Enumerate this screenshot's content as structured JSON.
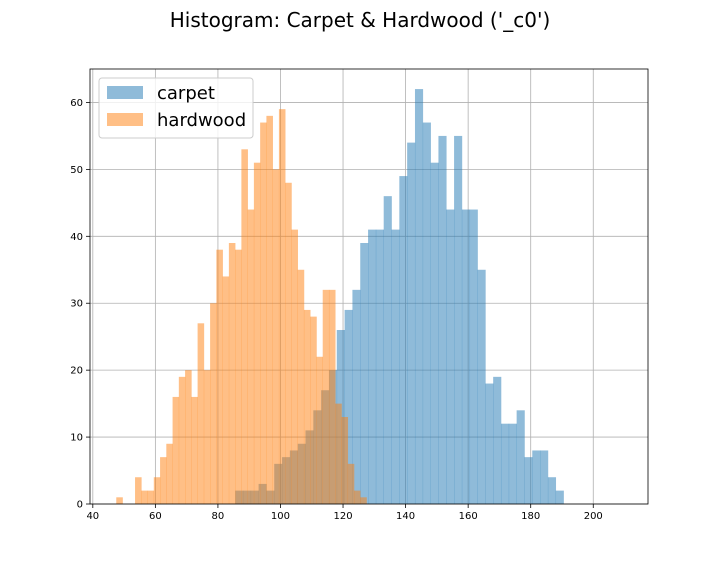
{
  "chart_data": {
    "type": "bar",
    "title": "Histogram: Carpet & Hardwood ('_c0')",
    "xlabel": "",
    "ylabel": "",
    "xlim": [
      39.1,
      217.5
    ],
    "ylim": [
      0,
      65
    ],
    "xticks": [
      40,
      60,
      80,
      100,
      120,
      140,
      160,
      180,
      200
    ],
    "yticks": [
      0,
      10,
      20,
      30,
      40,
      50,
      60
    ],
    "grid": true,
    "legend_position": "top-left",
    "series": [
      {
        "name": "carpet",
        "color": "#1f77b4",
        "alpha": 0.5,
        "bin_start": 85.5,
        "bin_width": 2.5,
        "counts": [
          2,
          2,
          2,
          3,
          2,
          6,
          7,
          8,
          9,
          11,
          14,
          17,
          20,
          26,
          29,
          32,
          39,
          41,
          41,
          46,
          41,
          49,
          54,
          62,
          57,
          51,
          55,
          44,
          55,
          44,
          44,
          35,
          18,
          19,
          12,
          12,
          14,
          7,
          8,
          8,
          4,
          2
        ]
      },
      {
        "name": "hardwood",
        "color": "#ff7f0e",
        "alpha": 0.5,
        "bin_start": 47.5,
        "bin_width": 2.0,
        "counts": [
          1,
          0,
          0,
          4,
          2,
          2,
          4,
          7,
          9,
          16,
          19,
          20,
          16,
          27,
          20,
          30,
          38,
          34,
          39,
          38,
          53,
          44,
          51,
          57,
          58,
          50,
          59,
          48,
          41,
          35,
          29,
          28,
          22,
          32,
          32,
          15,
          13,
          6,
          2,
          1,
          0,
          0,
          0,
          0,
          0,
          0,
          0
        ]
      }
    ]
  }
}
